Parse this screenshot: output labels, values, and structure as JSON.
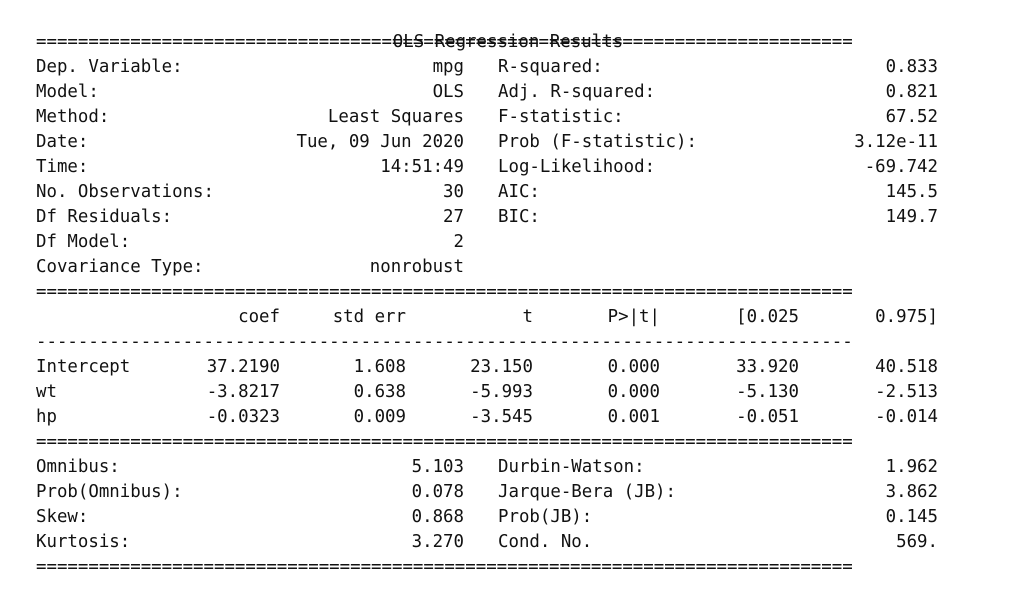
{
  "title": "OLS Regression Results",
  "rules": {
    "double": "==============================================================================",
    "single": "------------------------------------------------------------------------------"
  },
  "model_info": {
    "left": [
      {
        "label": "Dep. Variable:",
        "value": "mpg"
      },
      {
        "label": "Model:",
        "value": "OLS"
      },
      {
        "label": "Method:",
        "value": "Least Squares"
      },
      {
        "label": "Date:",
        "value": "Tue, 09 Jun 2020"
      },
      {
        "label": "Time:",
        "value": "14:51:49"
      },
      {
        "label": "No. Observations:",
        "value": "30"
      },
      {
        "label": "Df Residuals:",
        "value": "27"
      },
      {
        "label": "Df Model:",
        "value": "2"
      },
      {
        "label": "Covariance Type:",
        "value": "nonrobust"
      }
    ],
    "right": [
      {
        "label": "R-squared:",
        "value": "0.833"
      },
      {
        "label": "Adj. R-squared:",
        "value": "0.821"
      },
      {
        "label": "F-statistic:",
        "value": "67.52"
      },
      {
        "label": "Prob (F-statistic):",
        "value": "3.12e-11"
      },
      {
        "label": "Log-Likelihood:",
        "value": "-69.742"
      },
      {
        "label": "AIC:",
        "value": "145.5"
      },
      {
        "label": "BIC:",
        "value": "149.7"
      }
    ]
  },
  "coefficients": {
    "headers": [
      "coef",
      "std err",
      "t",
      "P>|t|",
      "[0.025",
      "0.975]"
    ],
    "rows": [
      {
        "name": "Intercept",
        "values": [
          "37.2190",
          "1.608",
          "23.150",
          "0.000",
          "33.920",
          "40.518"
        ]
      },
      {
        "name": "wt",
        "values": [
          "-3.8217",
          "0.638",
          "-5.993",
          "0.000",
          "-5.130",
          "-2.513"
        ]
      },
      {
        "name": "hp",
        "values": [
          "-0.0323",
          "0.009",
          "-3.545",
          "0.001",
          "-0.051",
          "-0.014"
        ]
      }
    ]
  },
  "diagnostics": {
    "left": [
      {
        "label": "Omnibus:",
        "value": "5.103"
      },
      {
        "label": "Prob(Omnibus):",
        "value": "0.078"
      },
      {
        "label": "Skew:",
        "value": "0.868"
      },
      {
        "label": "Kurtosis:",
        "value": "3.270"
      }
    ],
    "right": [
      {
        "label": "Durbin-Watson:",
        "value": "1.962"
      },
      {
        "label": "Jarque-Bera (JB):",
        "value": "3.862"
      },
      {
        "label": "Prob(JB):",
        "value": "0.145"
      },
      {
        "label": "Cond. No.",
        "value": "569."
      }
    ]
  }
}
